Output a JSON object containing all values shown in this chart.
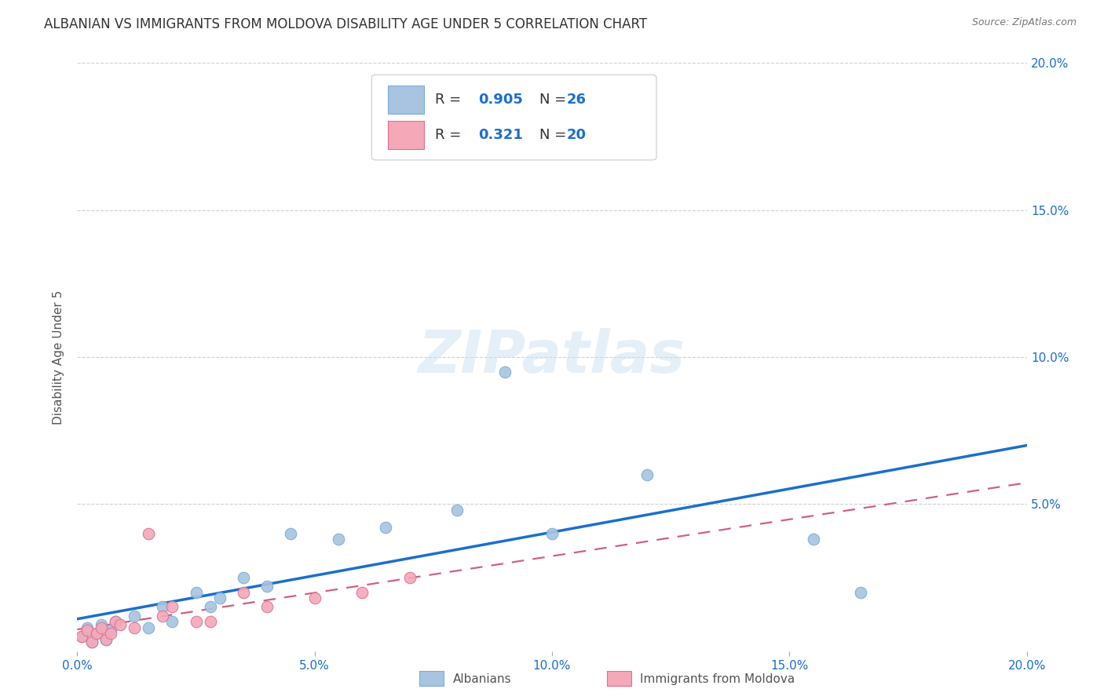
{
  "title": "ALBANIAN VS IMMIGRANTS FROM MOLDOVA DISABILITY AGE UNDER 5 CORRELATION CHART",
  "source": "Source: ZipAtlas.com",
  "ylabel": "Disability Age Under 5",
  "xlim": [
    0.0,
    0.2
  ],
  "ylim": [
    0.0,
    0.2
  ],
  "xtick_vals": [
    0.0,
    0.05,
    0.1,
    0.15,
    0.2
  ],
  "xtick_labels": [
    "0.0%",
    "5.0%",
    "10.0%",
    "15.0%",
    "20.0%"
  ],
  "ytick_vals": [
    0.05,
    0.1,
    0.15,
    0.2
  ],
  "ytick_labels": [
    "5.0%",
    "10.0%",
    "15.0%",
    "20.0%"
  ],
  "albanians_x": [
    0.001,
    0.002,
    0.003,
    0.004,
    0.005,
    0.006,
    0.007,
    0.008,
    0.012,
    0.015,
    0.018,
    0.02,
    0.025,
    0.028,
    0.03,
    0.035,
    0.04,
    0.045,
    0.055,
    0.065,
    0.08,
    0.09,
    0.1,
    0.12,
    0.155,
    0.165
  ],
  "albanians_y": [
    0.005,
    0.008,
    0.003,
    0.006,
    0.009,
    0.004,
    0.007,
    0.01,
    0.012,
    0.008,
    0.015,
    0.01,
    0.02,
    0.015,
    0.018,
    0.025,
    0.022,
    0.04,
    0.038,
    0.042,
    0.048,
    0.095,
    0.04,
    0.06,
    0.038,
    0.02
  ],
  "moldova_x": [
    0.001,
    0.002,
    0.003,
    0.004,
    0.005,
    0.006,
    0.007,
    0.008,
    0.009,
    0.012,
    0.015,
    0.018,
    0.02,
    0.025,
    0.028,
    0.035,
    0.04,
    0.05,
    0.06,
    0.07
  ],
  "moldova_y": [
    0.005,
    0.007,
    0.003,
    0.006,
    0.008,
    0.004,
    0.006,
    0.01,
    0.009,
    0.008,
    0.04,
    0.012,
    0.015,
    0.01,
    0.01,
    0.02,
    0.015,
    0.018,
    0.02,
    0.025
  ],
  "albanians_color": "#a8c4e0",
  "albanians_edge": "#7aaed6",
  "moldova_color": "#f4a8b8",
  "moldova_edge": "#e07090",
  "line_blue": "#1a6fcc",
  "line_pink": "#d06080",
  "R_albanian": 0.905,
  "N_albanian": 26,
  "R_moldova": 0.321,
  "N_moldova": 20,
  "accent_color": "#1a6fcc",
  "watermark": "ZIPatlas",
  "background_color": "#ffffff",
  "grid_color": "#cccccc",
  "title_fontsize": 12,
  "axis_label_fontsize": 11,
  "tick_fontsize": 11,
  "dot_size": 110
}
